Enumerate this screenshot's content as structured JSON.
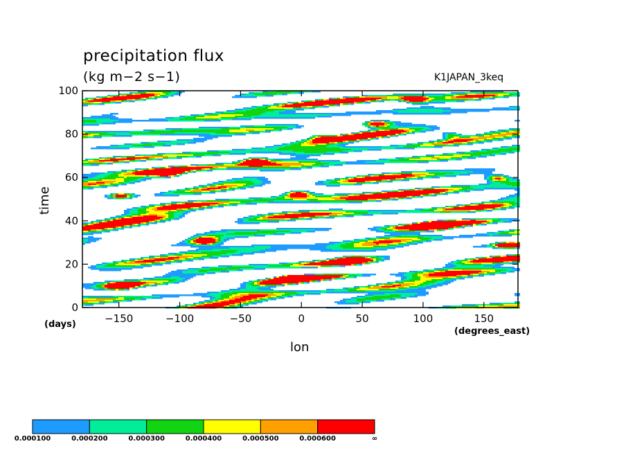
{
  "chart_data": {
    "type": "heatmap",
    "title": "precipitation flux",
    "units": "(kg m−2 s−1)",
    "dataset": "K1JAPAN_3keq",
    "xlabel": "lon",
    "ylabel": "time",
    "x_units": "(degrees_east)",
    "y_units": "(days)",
    "xlim": [
      -180,
      178
    ],
    "ylim": [
      0,
      100
    ],
    "x_ticks": [
      -150,
      -100,
      -50,
      0,
      50,
      100,
      150
    ],
    "y_ticks": [
      0,
      20,
      40,
      60,
      80,
      100
    ],
    "colorbar": {
      "levels": [
        "0.000100",
        "0.000200",
        "0.000300",
        "0.000400",
        "0.000500",
        "0.000600",
        "∞"
      ],
      "colors": [
        "#1e9bff",
        "#00ee99",
        "#10d510",
        "#ffff00",
        "#ffa000",
        "#ff0000"
      ]
    },
    "hotspots": [
      {
        "lon": -5,
        "time": 53,
        "level": 6
      },
      {
        "lon": -10,
        "time": 14,
        "level": 6
      },
      {
        "lon": 92,
        "time": 96,
        "level": 6
      },
      {
        "lon": 160,
        "time": 60,
        "level": 6
      },
      {
        "lon": -150,
        "time": 10,
        "level": 6
      },
      {
        "lon": -150,
        "time": 52,
        "level": 6
      },
      {
        "lon": -40,
        "time": 68,
        "level": 6
      },
      {
        "lon": 120,
        "time": 80,
        "level": 6
      },
      {
        "lon": 60,
        "time": 85,
        "level": 6
      },
      {
        "lon": -80,
        "time": 31,
        "level": 6
      },
      {
        "lon": 170,
        "time": 29,
        "level": 6
      },
      {
        "lon": 40,
        "time": 22,
        "level": 6
      },
      {
        "lon": 110,
        "time": 38,
        "level": 6
      },
      {
        "lon": -110,
        "time": 62,
        "level": 5
      },
      {
        "lon": 10,
        "time": 80,
        "level": 5
      }
    ]
  }
}
